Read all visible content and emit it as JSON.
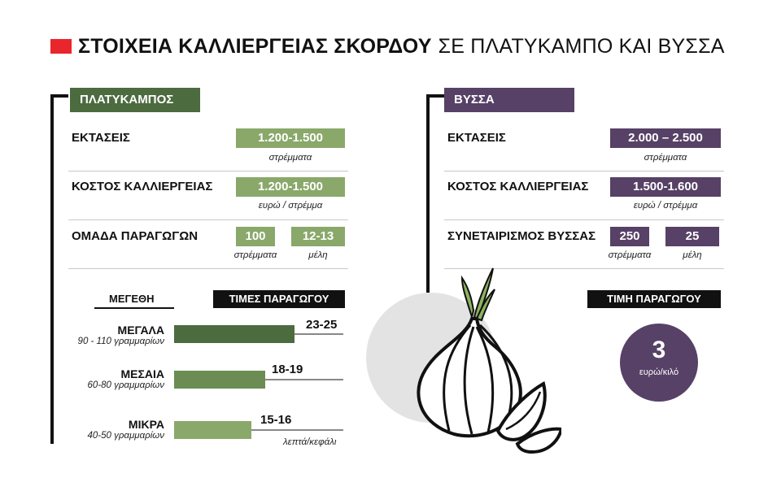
{
  "title": {
    "bold": "ΣΤΟΙΧΕΙΑ ΚΑΛΛΙΕΡΓΕΙΑΣ ΣΚΟΡΔΟΥ",
    "light": "ΣΕ ΠΛΑΤΥΚΑΜΠΟ ΚΑΙ ΒΥΣΣΑ",
    "accent_color": "#e8262b"
  },
  "platykampos": {
    "name": "ΠΛΑΤΥΚΑΜΠΟΣ",
    "color_dark": "#4c6b3f",
    "color_light": "#89a86a",
    "area": {
      "label": "ΕΚΤΑΣΕΙΣ",
      "value": "1.200-1.500",
      "unit": "στρέμματα"
    },
    "cost": {
      "label": "ΚΟΣΤΟΣ ΚΑΛΛΙΕΡΓΕΙΑΣ",
      "value": "1.200-1.500",
      "unit": "ευρώ / στρέμμα"
    },
    "group": {
      "label": "ΟΜΑΔΑ ΠΑΡΑΓΩΓΩΝ",
      "value1": "100",
      "unit1": "στρέμματα",
      "value2": "12-13",
      "unit2": "μέλη"
    },
    "sizes_heading": "ΜΕΓΕΘΗ",
    "prices_heading": "ΤΙΜΕΣ ΠΑΡΑΓΩΓΟΥ",
    "prices_unit": "λεπτά/κεφάλι",
    "sizes": [
      {
        "name": "ΜΕΓΑΛΑ",
        "grams": "90 - 110 γραμμαρίων",
        "price": "23-25",
        "price_max": 25,
        "color": "#4c6b3f"
      },
      {
        "name": "ΜΕΣΑΙΑ",
        "grams": "60-80 γραμμαρίων",
        "price": "18-19",
        "price_max": 19,
        "color": "#6b8c52"
      },
      {
        "name": "ΜΙΚΡΑ",
        "grams": "40-50 γραμμαρίων",
        "price": "15-16",
        "price_max": 16,
        "color": "#89a86a"
      }
    ]
  },
  "vyssa": {
    "name": "ΒΥΣΣΑ",
    "color": "#574166",
    "area": {
      "label": "ΕΚΤΑΣΕΙΣ",
      "value": "2.000 – 2.500",
      "unit": "στρέμματα"
    },
    "cost": {
      "label": "ΚΟΣΤΟΣ ΚΑΛΛΙΕΡΓΕΙΑΣ",
      "value": "1.500-1.600",
      "unit": "ευρώ / στρέμμα"
    },
    "coop": {
      "label": "ΣΥΝΕΤΑΙΡΙΣΜΟΣ ΒΥΣΣΑΣ",
      "value1": "250",
      "unit1": "στρέμματα",
      "value2": "25",
      "unit2": "μέλη"
    },
    "price_heading": "ΤΙΜΗ ΠΑΡΑΓΩΓΟΥ",
    "price_value": "3",
    "price_unit": "ευρώ/κιλό"
  },
  "illustration": {
    "icon": "garlic-icon",
    "circle_color": "#e3e3e3"
  }
}
